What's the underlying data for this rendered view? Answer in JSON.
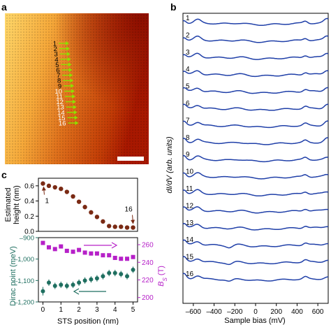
{
  "panel_labels": {
    "a": "a",
    "b": "b",
    "c": "c"
  },
  "colors": {
    "blue_curve": "#1f3fa8",
    "brown_dot": "#7a2a14",
    "teal": "#1f6f60",
    "magenta": "#b620c8",
    "stm_dark": "#b01d00",
    "stm_bright": "#ffd86a",
    "stm_mid": "#e0721c",
    "marker_green": "#8fe000"
  },
  "panel_a": {
    "image_type": "STM topography",
    "scale_bar": true,
    "marker_labels": [
      "1",
      "2",
      "3",
      "4",
      "5",
      "6",
      "7",
      "8",
      "9",
      "10",
      "11",
      "12",
      "13",
      "14",
      "15",
      "16"
    ],
    "marker_icon": "arrow-right-icon"
  },
  "chart_data": [
    {
      "id": "b",
      "type": "line",
      "xlabel": "Sample bias (mV)",
      "ylabel": "dI/dV (arb. units)",
      "xlim": [
        -700,
        700
      ],
      "xticks": [
        -600,
        -400,
        -200,
        0,
        200,
        400,
        600
      ],
      "xtick_labels": [
        "–600",
        "–400",
        "–200",
        "0",
        "200",
        "400",
        "600"
      ],
      "series_labels": [
        "1",
        "2",
        "3",
        "4",
        "5",
        "6",
        "7",
        "8",
        "9",
        "10",
        "11",
        "12",
        "13",
        "14",
        "15",
        "16"
      ],
      "grid": false
    },
    {
      "id": "c-top",
      "type": "scatter",
      "ylabel": "Estimated height (nm)",
      "ylim": [
        0,
        0.7
      ],
      "yticks": [
        0.0,
        0.2,
        0.4,
        0.6
      ],
      "ytick_labels": [
        "0.0",
        "0.2",
        "0.4",
        "0.6"
      ],
      "xlim": [
        -0.25,
        5.25
      ],
      "x": [
        0,
        0.33,
        0.67,
        1.0,
        1.33,
        1.67,
        2.0,
        2.33,
        2.67,
        3.0,
        3.33,
        3.67,
        4.0,
        4.33,
        4.67,
        5.0
      ],
      "values": [
        0.63,
        0.6,
        0.58,
        0.56,
        0.52,
        0.46,
        0.39,
        0.32,
        0.25,
        0.19,
        0.13,
        0.07,
        0.06,
        0.06,
        0.05,
        0.05
      ],
      "annotations": [
        {
          "text": "1",
          "at_point": 1
        },
        {
          "text": "16",
          "at_point": 16
        }
      ]
    },
    {
      "id": "c-bottom",
      "type": "scatter",
      "xlabel": "STS position (nm)",
      "xlim": [
        -0.25,
        5.25
      ],
      "xticks": [
        0,
        1,
        2,
        3,
        4,
        5
      ],
      "xtick_labels": [
        "0",
        "1",
        "2",
        "3",
        "4",
        "5"
      ],
      "left_axis": {
        "label": "Dirac point (meV)",
        "ylim": [
          -1200,
          -900
        ],
        "yticks": [
          -1200,
          -1100,
          -1000,
          -900
        ],
        "ytick_labels": [
          "–1,200",
          "–1,100",
          "–1,000",
          "–900"
        ]
      },
      "right_axis": {
        "label": "B_S (T)",
        "ylim": [
          195,
          268
        ],
        "yticks": [
          200,
          220,
          240,
          260
        ],
        "ytick_labels": [
          "200",
          "220",
          "240",
          "260"
        ]
      },
      "series": [
        {
          "axis": "left",
          "x": [
            0,
            0.33,
            0.67,
            1.0,
            1.33,
            1.67,
            2.0,
            2.33,
            2.67,
            3.0,
            3.33,
            3.67,
            4.0,
            4.33,
            4.67,
            5.0
          ],
          "values": [
            -1150,
            -1110,
            -1125,
            -1120,
            -1125,
            -1120,
            -1110,
            -1100,
            -1095,
            -1090,
            -1080,
            -1065,
            -1065,
            -1070,
            -1080,
            -1050
          ],
          "err": [
            20,
            15,
            15,
            15,
            15,
            15,
            15,
            15,
            15,
            15,
            15,
            15,
            15,
            15,
            15,
            15
          ]
        },
        {
          "axis": "right",
          "x": [
            0,
            0.33,
            0.67,
            1.0,
            1.33,
            1.67,
            2.0,
            2.33,
            2.67,
            3.0,
            3.33,
            3.67,
            4.0,
            4.33,
            4.67,
            5.0
          ],
          "values": [
            262,
            257,
            255,
            258,
            253,
            252,
            254,
            251,
            250,
            250,
            248,
            248,
            245,
            244,
            244,
            246
          ]
        }
      ]
    }
  ]
}
